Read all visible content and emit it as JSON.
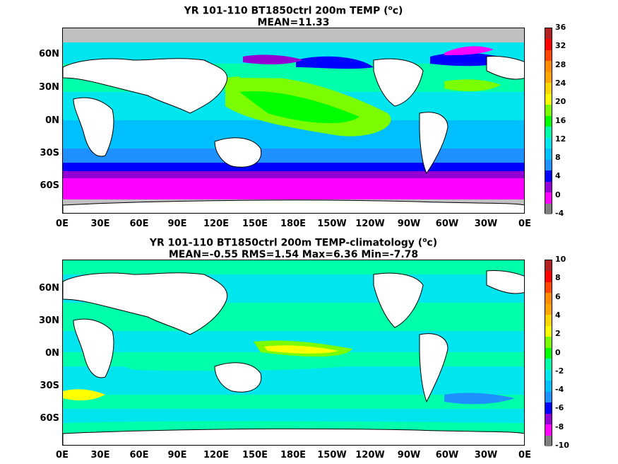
{
  "panel1": {
    "title_line1": "YR 101-110 BT1850ctrl 200m TEMP (",
    "title_sup": "o",
    "title_unit": "c)",
    "title_line2": "MEAN=11.33",
    "colorbar_labels": [
      "36",
      "32",
      "28",
      "24",
      "20",
      "16",
      "12",
      "8",
      "4",
      "0",
      "-4"
    ],
    "colors": [
      "#7f7f7f",
      "#ff00ff",
      "#9400d3",
      "#0000ff",
      "#1e90ff",
      "#00bfff",
      "#00e5ee",
      "#00ffaa",
      "#00ff00",
      "#7cfc00",
      "#ffff00",
      "#ffd700",
      "#ffa500",
      "#ff8c00",
      "#ff4500",
      "#ff0000",
      "#b22222"
    ]
  },
  "panel2": {
    "title_line1": "YR 101-110 BT1850ctrl 200m TEMP-climatology (",
    "title_sup": "o",
    "title_unit": "c)",
    "title_line2": "MEAN=-0.55   RMS=1.54   Max=6.36   Min=-7.78",
    "colorbar_labels": [
      "10",
      "8",
      "6",
      "4",
      "2",
      "0",
      "-2",
      "-4",
      "-6",
      "-8",
      "-10"
    ],
    "colors": [
      "#7f7f7f",
      "#ff00ff",
      "#9400d3",
      "#0000ff",
      "#1e90ff",
      "#00bfff",
      "#00e5ee",
      "#00ffaa",
      "#00ff00",
      "#7cfc00",
      "#ffff00",
      "#ffd700",
      "#ffa500",
      "#ff8c00",
      "#ff4500",
      "#ff0000",
      "#b22222"
    ]
  },
  "lat_labels": [
    "60N",
    "30N",
    "0N",
    "30S",
    "60S"
  ],
  "lon_labels": [
    "0E",
    "30E",
    "60E",
    "90E",
    "120E",
    "150E",
    "180E",
    "150W",
    "120W",
    "90W",
    "60W",
    "30W",
    "0E"
  ]
}
